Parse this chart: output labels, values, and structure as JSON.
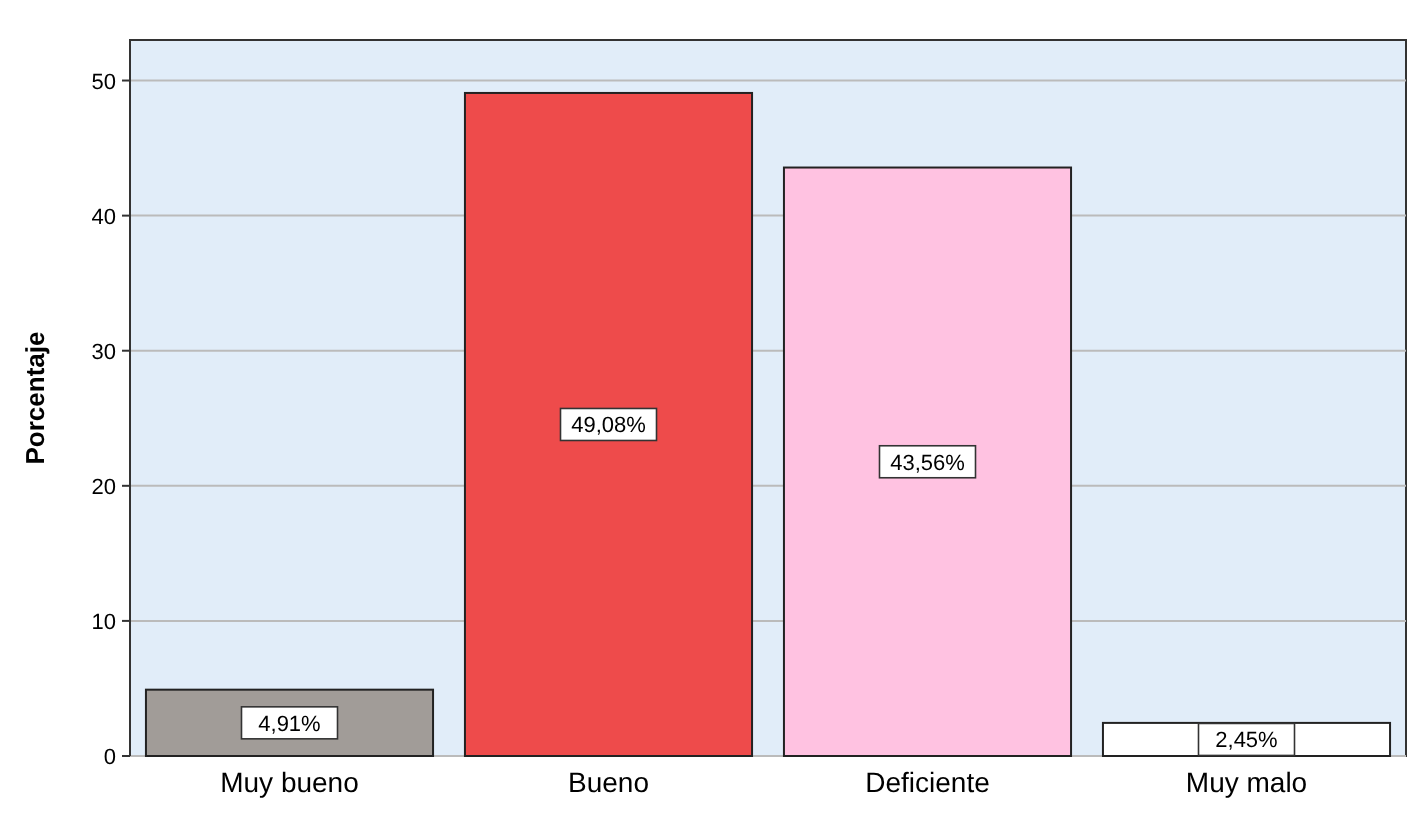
{
  "chart_data": {
    "type": "bar",
    "ylabel": "Porcentaje",
    "categories": [
      "Muy bueno",
      "Bueno",
      "Deficiente",
      "Muy malo"
    ],
    "values": [
      4.91,
      49.08,
      43.56,
      2.45
    ],
    "colors": [
      "#a19c98",
      "#ee4b4b",
      "#ffc2e1",
      "#ffffff"
    ],
    "value_labels": [
      "4,91%",
      "49,08%",
      "43,56%",
      "2,45%"
    ],
    "ylim": [
      0,
      53
    ],
    "yticks": [
      0,
      10,
      20,
      30,
      40,
      50
    ],
    "grid": "y"
  }
}
